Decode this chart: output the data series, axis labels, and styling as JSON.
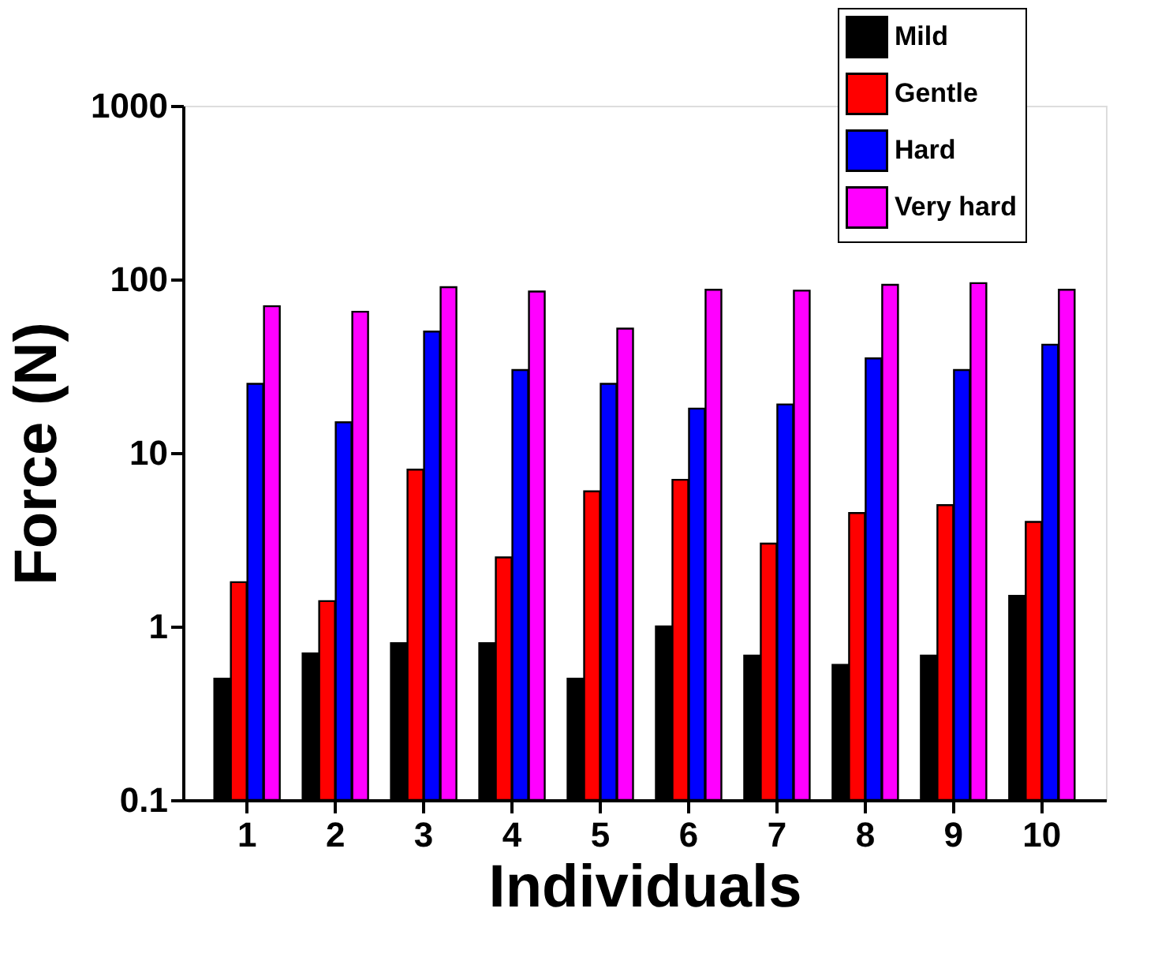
{
  "chart_data": {
    "type": "bar",
    "xlabel": "Individuals",
    "ylabel": "Force (N)",
    "categories": [
      "1",
      "2",
      "3",
      "4",
      "5",
      "6",
      "7",
      "8",
      "9",
      "10"
    ],
    "series": [
      {
        "name": "Mild",
        "color": "#000000",
        "values": [
          0.5,
          0.7,
          0.8,
          0.8,
          0.5,
          1.0,
          0.68,
          0.6,
          0.68,
          1.5
        ]
      },
      {
        "name": "Gentle",
        "color": "#ff0000",
        "values": [
          1.8,
          1.4,
          8,
          2.5,
          6,
          7,
          3,
          4.5,
          5,
          4
        ]
      },
      {
        "name": "Hard",
        "color": "#0000ff",
        "values": [
          25,
          15,
          50,
          30,
          25,
          18,
          19,
          35,
          30,
          42
        ]
      },
      {
        "name": "Very hard",
        "color": "#ff00ff",
        "values": [
          70,
          65,
          90,
          85,
          52,
          87,
          86,
          93,
          95,
          87
        ]
      }
    ],
    "log": true,
    "ylim": [
      0.1,
      1000
    ],
    "yticks": [
      0.1,
      1,
      10,
      100,
      1000
    ],
    "grid": false,
    "legend": "top right"
  }
}
